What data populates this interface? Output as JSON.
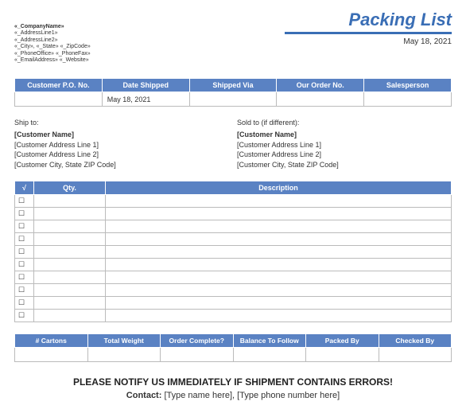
{
  "title": "Packing List",
  "date": "May 18, 2021",
  "company": {
    "name": "«_CompanyName»",
    "addr1": "«_AddressLine1»",
    "addr2": "«_AddressLine2»",
    "citystate": "«_City», «_State» «_ZipCode»",
    "phone": "«_PhoneOffice» «_PhoneFax»",
    "email": "«_EmailAddress» «_Website»"
  },
  "order_headers": {
    "po": "Customer P.O. No.",
    "shipped": "Date Shipped",
    "via": "Shipped Via",
    "orderno": "Our Order No.",
    "sales": "Salesperson"
  },
  "order_row": {
    "po": "",
    "shipped": "May 18, 2021",
    "via": "",
    "orderno": "",
    "sales": ""
  },
  "shipto": {
    "label": "Ship to:",
    "name": "[Customer Name]",
    "l1": "[Customer Address Line 1]",
    "l2": "[Customer Address Line 2]",
    "l3": "[Customer City, State ZIP Code]"
  },
  "soldto": {
    "label": "Sold to (if different):",
    "name": "[Customer Name]",
    "l1": "[Customer Address Line 1]",
    "l2": "[Customer Address Line 2]",
    "l3": "[Customer City, State ZIP Code]"
  },
  "items_headers": {
    "chk": "√",
    "qty": "Qty.",
    "desc": "Description"
  },
  "item_rows": 10,
  "checkbox_glyph": "☐",
  "summary_headers": {
    "cartons": "# Cartons",
    "weight": "Total Weight",
    "complete": "Order Complete?",
    "balance": "Balance To Follow",
    "packed": "Packed By",
    "checked": "Checked By"
  },
  "notify": "PLEASE NOTIFY US IMMEDIATELY IF SHIPMENT CONTAINS ERRORS!",
  "contact_label": "Contact:",
  "contact_value": " [Type name here], [Type phone number here]",
  "colors": {
    "accent": "#5a82c3",
    "title": "#3a6eb5",
    "border": "#bbbbbb"
  }
}
